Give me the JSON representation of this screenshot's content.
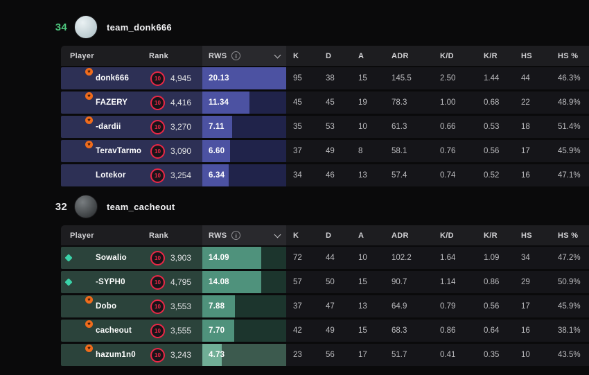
{
  "columns": [
    "Player",
    "Rank",
    "RWS",
    "K",
    "D",
    "A",
    "ADR",
    "K/D",
    "K/R",
    "HS",
    "HS %"
  ],
  "rws_header": {
    "label": "RWS",
    "info_icon": "info-circle",
    "chevron_icon": "chevron-down"
  },
  "rws_max": 20.13,
  "level_icon": {
    "value": "10",
    "ring_color": "#eb2746"
  },
  "badge_colors": {
    "star_bg": "#f06c1c",
    "star_glyph": "#3a1708",
    "star_char": "★"
  },
  "diamond_color": "#3ad3a9",
  "stats_cell_bg": "#151519",
  "teams": [
    {
      "score": "34",
      "score_color": "#4dc57d",
      "name": "team_donk666",
      "avatar_colors": [
        "#eaf1f3",
        "#a9bcc2"
      ],
      "theme": {
        "row_bg": "#2d3055",
        "rws_cell_bg": "#20234a",
        "rws_bar": "#4c52a2"
      },
      "players": [
        {
          "name": "donk666",
          "level": "10",
          "elo": "4,945",
          "rws": "20.13",
          "rws_pct": 100,
          "star": true,
          "diamond": false,
          "avatar": [
            "#e3eaec",
            "#98aab1"
          ],
          "stats": [
            "95",
            "38",
            "15",
            "145.5",
            "2.50",
            "1.44",
            "44",
            "46.3%"
          ]
        },
        {
          "name": "FAZERY",
          "level": "10",
          "elo": "4,416",
          "rws": "11.34",
          "rws_pct": 56.3,
          "star": true,
          "diamond": false,
          "avatar": [
            "#96613c",
            "#2c1a11"
          ],
          "stats": [
            "45",
            "45",
            "19",
            "78.3",
            "1.00",
            "0.68",
            "22",
            "48.9%"
          ]
        },
        {
          "name": "-dardii",
          "level": "10",
          "elo": "3,270",
          "rws": "7.11",
          "rws_pct": 35.3,
          "star": true,
          "diamond": false,
          "avatar": [
            "#8c2424",
            "#1c0d0d"
          ],
          "stats": [
            "35",
            "53",
            "10",
            "61.3",
            "0.66",
            "0.53",
            "18",
            "51.4%"
          ]
        },
        {
          "name": "TeravTarmo",
          "level": "10",
          "elo": "3,090",
          "rws": "6.60",
          "rws_pct": 32.8,
          "star": true,
          "diamond": false,
          "avatar": [
            "#ecdcd7",
            "#b59c9c"
          ],
          "stats": [
            "37",
            "49",
            "8",
            "58.1",
            "0.76",
            "0.56",
            "17",
            "45.9%"
          ]
        },
        {
          "name": "Lotekor",
          "level": "10",
          "elo": "3,254",
          "rws": "6.34",
          "rws_pct": 31.5,
          "star": false,
          "diamond": false,
          "avatar": [
            "#7493cd",
            "#2a3e66"
          ],
          "stats": [
            "34",
            "46",
            "13",
            "57.4",
            "0.74",
            "0.52",
            "16",
            "47.1%"
          ]
        }
      ]
    },
    {
      "score": "32",
      "score_color": "#e9e9eb",
      "name": "team_cacheout",
      "avatar_colors": [
        "#787d80",
        "#242729"
      ],
      "theme": {
        "row_bg": "#2b433b",
        "rws_cell_bg": "#1c352d",
        "rws_bar": "#4f927c",
        "rws_cell_bg_hover": "#3c5a4e",
        "rws_bar_hover": "#70ae96"
      },
      "players": [
        {
          "name": "Sowalio",
          "level": "10",
          "elo": "3,903",
          "rws": "14.09",
          "rws_pct": 70.0,
          "star": false,
          "diamond": true,
          "avatar": [
            "#4d5669",
            "#171c26"
          ],
          "stats": [
            "72",
            "44",
            "10",
            "102.2",
            "1.64",
            "1.09",
            "34",
            "47.2%"
          ]
        },
        {
          "name": "-SYPH0",
          "level": "10",
          "elo": "4,795",
          "rws": "14.08",
          "rws_pct": 69.9,
          "star": false,
          "diamond": true,
          "avatar": [
            "#cfab8a",
            "#6e4e36"
          ],
          "stats": [
            "57",
            "50",
            "15",
            "90.7",
            "1.14",
            "0.86",
            "29",
            "50.9%"
          ]
        },
        {
          "name": "Dobo",
          "level": "10",
          "elo": "3,553",
          "rws": "7.88",
          "rws_pct": 39.1,
          "star": true,
          "diamond": false,
          "avatar": [
            "#9da3a3",
            "#474c4c"
          ],
          "stats": [
            "37",
            "47",
            "13",
            "64.9",
            "0.79",
            "0.56",
            "17",
            "45.9%"
          ]
        },
        {
          "name": "cacheout",
          "level": "10",
          "elo": "3,555",
          "rws": "7.70",
          "rws_pct": 38.3,
          "star": true,
          "diamond": false,
          "avatar": [
            "#90989a",
            "#3d4244"
          ],
          "stats": [
            "42",
            "49",
            "15",
            "68.3",
            "0.86",
            "0.64",
            "16",
            "38.1%"
          ]
        },
        {
          "name": "hazum1n0",
          "level": "10",
          "elo": "3,243",
          "rws": "4.73",
          "rws_pct": 23.5,
          "star": true,
          "diamond": false,
          "avatar": [
            "#8f9484",
            "#3b3f37"
          ],
          "stats": [
            "23",
            "56",
            "17",
            "51.7",
            "0.41",
            "0.35",
            "10",
            "43.5%"
          ],
          "rws_hover": true
        }
      ]
    }
  ]
}
